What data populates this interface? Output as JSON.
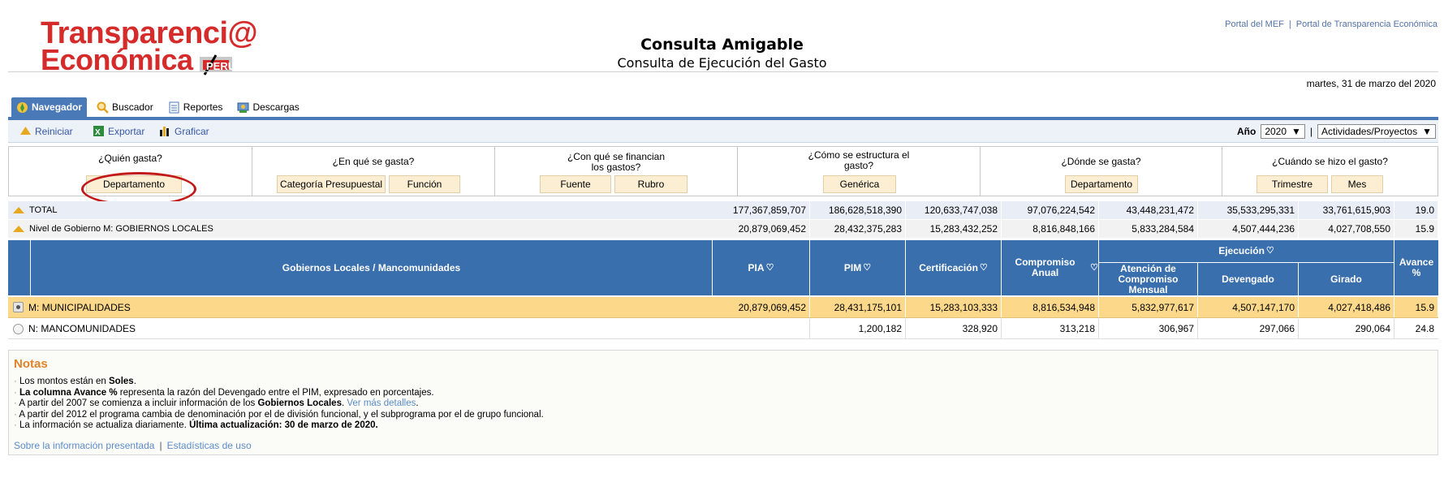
{
  "header": {
    "logo_line1": "Transparenci@",
    "logo_line2": "Económica",
    "logo_badge": "PERU",
    "title": "Consulta Amigable",
    "subtitle": "Consulta de Ejecución del Gasto",
    "links": [
      "Portal del MEF",
      "Portal de Transparencia Económica"
    ],
    "date": "martes, 31 de marzo del 2020"
  },
  "tabs": [
    {
      "label": "Navegador",
      "icon": "compass-icon",
      "active": true
    },
    {
      "label": "Buscador",
      "icon": "magnifier-icon",
      "active": false
    },
    {
      "label": "Reportes",
      "icon": "document-icon",
      "active": false
    },
    {
      "label": "Descargas",
      "icon": "download-icon",
      "active": false
    }
  ],
  "toolbar": {
    "reiniciar": "Reiniciar",
    "exportar": "Exportar",
    "graficar": "Graficar",
    "year_label": "Año",
    "year_value": "2020",
    "view_value": "Actividades/Proyectos"
  },
  "questions": [
    {
      "label": "¿Quién gasta?",
      "buttons": [
        "Departamento"
      ]
    },
    {
      "label": "¿En qué se gasta?",
      "buttons": [
        "Categoría Presupuestal",
        "Función"
      ]
    },
    {
      "label": "¿Con qué se financian los gastos?",
      "buttons": [
        "Fuente",
        "Rubro"
      ]
    },
    {
      "label": "¿Cómo se estructura el gasto?",
      "buttons": [
        "Genérica"
      ]
    },
    {
      "label": "¿Dónde se gasta?",
      "buttons": [
        "Departamento"
      ]
    },
    {
      "label": "¿Cuándo se hizo el gasto?",
      "buttons": [
        "Trimestre",
        "Mes"
      ]
    }
  ],
  "summary": [
    {
      "label": "TOTAL",
      "values": [
        "177,367,859,707",
        "186,628,518,390",
        "120,633,747,038",
        "97,076,224,542",
        "43,448,231,472",
        "35,533,295,331",
        "33,761,615,903",
        "19.0"
      ]
    },
    {
      "label": "Nivel de Gobierno M: GOBIERNOS LOCALES",
      "values": [
        "20,879,069,452",
        "28,432,375,283",
        "15,283,432,252",
        "8,816,848,166",
        "5,833,284,584",
        "4,507,444,236",
        "4,027,708,550",
        "15.9"
      ]
    }
  ],
  "table": {
    "group_header": "Gobiernos Locales / Mancomunidades",
    "columns": {
      "pia": "PIA",
      "pim": "PIM",
      "cert": "Certificación",
      "comp": "Compromiso Anual",
      "ejec": "Ejecución",
      "atencion": "Atención de Compromiso Mensual",
      "devengado": "Devengado",
      "girado": "Girado",
      "avance": "Avance %"
    },
    "rows": [
      {
        "label": "M: MUNICIPALIDADES",
        "selected": true,
        "values": [
          "20,879,069,452",
          "28,431,175,101",
          "15,283,103,333",
          "8,816,534,948",
          "5,832,977,617",
          "4,507,147,170",
          "4,027,418,486",
          "15.9"
        ]
      },
      {
        "label": "N: MANCOMUNIDADES",
        "selected": false,
        "values": [
          "",
          "1,200,182",
          "328,920",
          "313,218",
          "306,967",
          "297,066",
          "290,064",
          "24.8"
        ]
      }
    ]
  },
  "notes": {
    "title": "Notas",
    "items": [
      {
        "a": "Los montos están en ",
        "b": "Soles",
        "c": "."
      },
      {
        "a": "",
        "b": "La columna Avance %",
        "c": " representa la razón del Devengado entre el PIM, expresado en porcentajes."
      },
      {
        "a": "A partir del 2007 se comienza a incluir información de los ",
        "b": "Gobiernos Locales",
        "c": ". ",
        "link": "Ver más detalles",
        "d": "."
      },
      {
        "a": "A partir del 2012 el programa cambia de denominación por el de división funcional, y el subprograma por el de grupo funcional.",
        "b": "",
        "c": ""
      },
      {
        "a": "La información se actualiza diariamente. ",
        "b": "Última actualización: 30 de marzo de 2020.",
        "c": ""
      }
    ],
    "footer_links": [
      "Sobre la información presentada",
      "Estadísticas de uso"
    ]
  }
}
